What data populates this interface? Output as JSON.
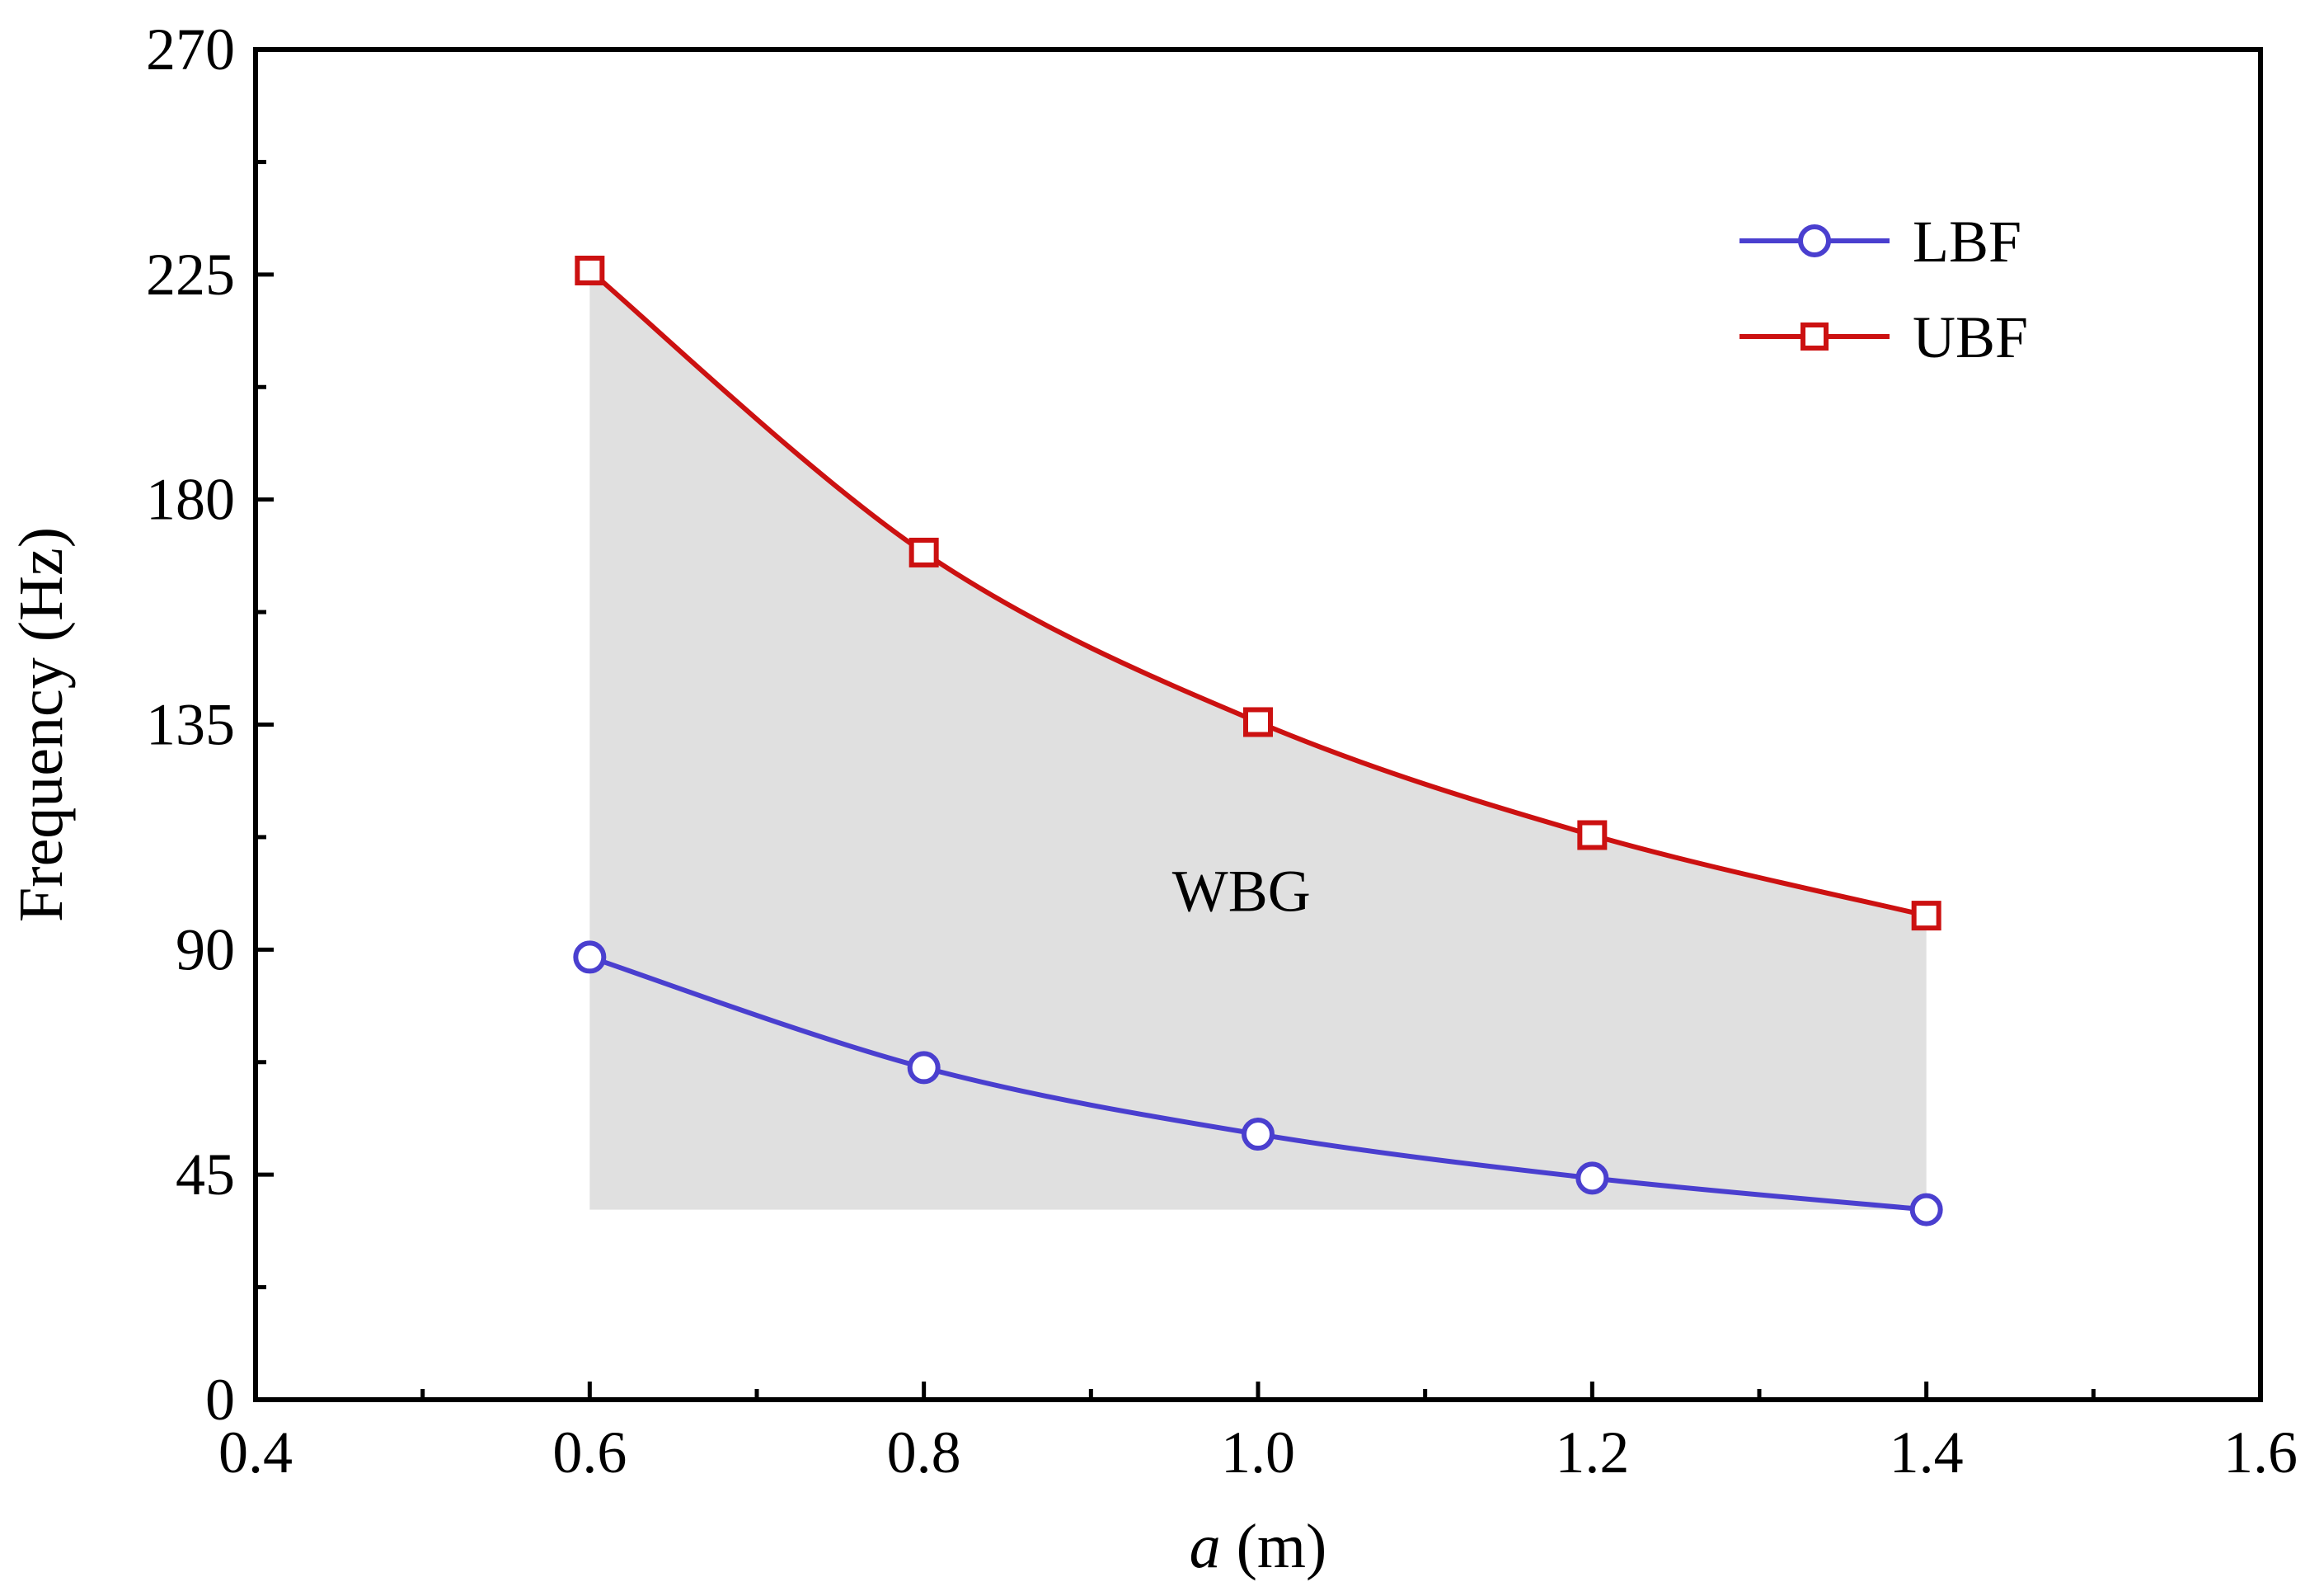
{
  "chart_data": {
    "type": "line",
    "title": "",
    "xlabel_var": "a",
    "xlabel_unit": " (m)",
    "ylabel": "Frequency (Hz)",
    "xlim": [
      0.4,
      1.6
    ],
    "ylim": [
      0,
      270
    ],
    "x_ticks": [
      "0.4",
      "0.6",
      "0.8",
      "1.0",
      "1.2",
      "1.4",
      "1.6"
    ],
    "y_ticks": [
      "0",
      "45",
      "90",
      "135",
      "180",
      "225",
      "270"
    ],
    "x_tick_values": [
      0.4,
      0.6,
      0.8,
      1.0,
      1.2,
      1.4,
      1.6
    ],
    "y_tick_values": [
      0,
      45,
      90,
      135,
      180,
      225,
      270
    ],
    "x_minor_step": 0.1,
    "y_minor_step": 22.5,
    "grid": false,
    "legend_position": "top-right",
    "shaded_region": {
      "label": "WBG",
      "label_x": 0.99,
      "label_y": 102,
      "floor_y": 38.0,
      "color": "#e0e0e0"
    },
    "series": [
      {
        "name": "LBF",
        "marker": "circle",
        "color": "#4a3fcf",
        "x": [
          0.6,
          0.8,
          1.0,
          1.2,
          1.4
        ],
        "y": [
          88.5,
          66.4,
          53.1,
          44.3,
          38.0
        ]
      },
      {
        "name": "UBF",
        "marker": "square",
        "color": "#cc1111",
        "x": [
          0.6,
          0.8,
          1.0,
          1.2,
          1.4
        ],
        "y": [
          225.8,
          169.4,
          135.5,
          112.9,
          96.8
        ]
      }
    ]
  }
}
